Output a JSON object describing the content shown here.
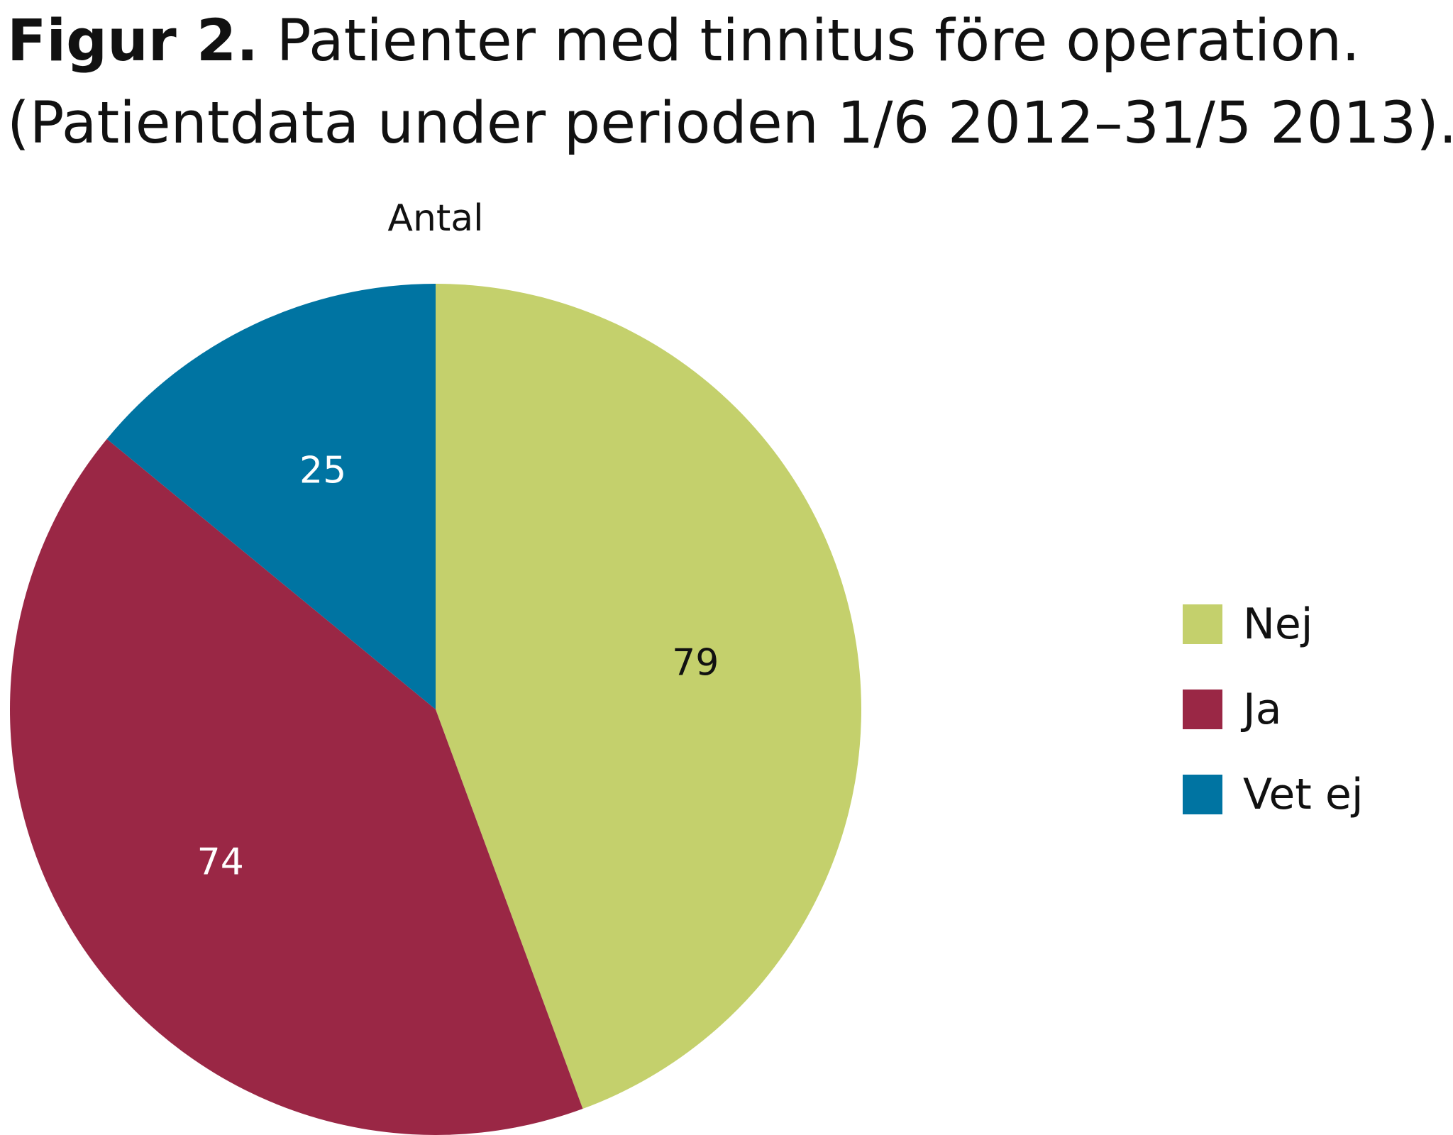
{
  "caption": {
    "label": "Figur 2.",
    "text": " Patienter med tinnitus före operation.",
    "line2": "(Patientdata under perioden 1/6 2012–31/5 2013)."
  },
  "chart_data": {
    "type": "pie",
    "title": "Antal",
    "categories": [
      "Nej",
      "Ja",
      "Vet ej"
    ],
    "values": [
      79,
      74,
      25
    ],
    "colors": [
      "#c4d06c",
      "#9a2745",
      "#0074a2"
    ],
    "data_labels": [
      "79",
      "74",
      "25"
    ],
    "label_colors": [
      "#111111",
      "#ffffff",
      "#ffffff"
    ],
    "start_angle": "12 o'clock",
    "direction": "clockwise",
    "legend": {
      "placement": "right",
      "items": [
        "Nej",
        "Ja",
        "Vet ej"
      ]
    }
  }
}
